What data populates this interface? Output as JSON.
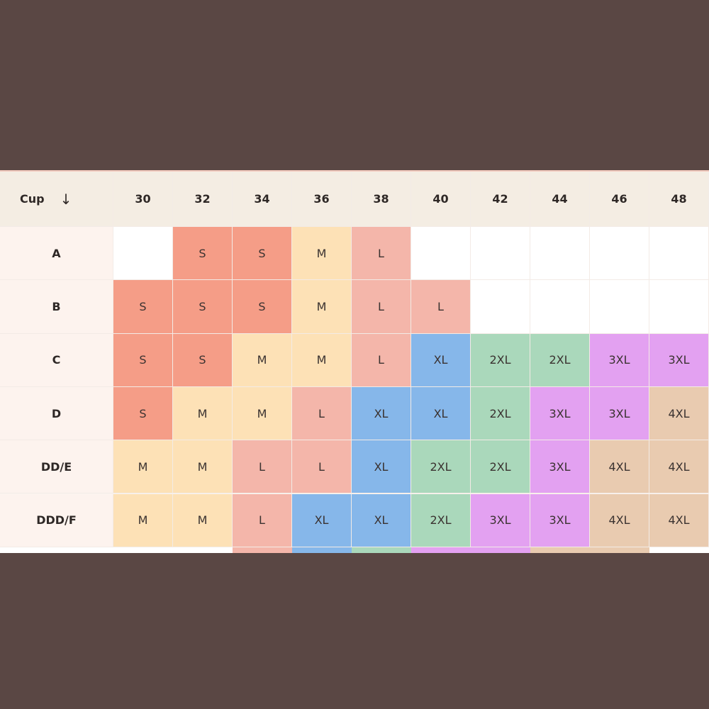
{
  "table": {
    "header": {
      "cup_label": "Cup",
      "arrow": "↓",
      "bands": [
        "30",
        "32",
        "34",
        "36",
        "38",
        "40",
        "42",
        "44",
        "46",
        "48"
      ]
    },
    "rows": [
      {
        "cup": "A",
        "cells": [
          null,
          "S",
          "S",
          "M",
          "L",
          null,
          null,
          null,
          null,
          null
        ]
      },
      {
        "cup": "B",
        "cells": [
          "S",
          "S",
          "S",
          "M",
          "L",
          "L",
          null,
          null,
          null,
          null
        ]
      },
      {
        "cup": "C",
        "cells": [
          "S",
          "S",
          "M",
          "M",
          "L",
          "XL",
          "2XL",
          "2XL",
          "3XL",
          "3XL"
        ]
      },
      {
        "cup": "D",
        "cells": [
          "S",
          "M",
          "M",
          "L",
          "XL",
          "XL",
          "2XL",
          "3XL",
          "3XL",
          "4XL"
        ]
      },
      {
        "cup": "DD/E",
        "cells": [
          "M",
          "M",
          "L",
          "L",
          "XL",
          "2XL",
          "2XL",
          "3XL",
          "4XL",
          "4XL"
        ]
      },
      {
        "cup": "DDD/F",
        "cells": [
          "M",
          "M",
          "L",
          "XL",
          "XL",
          "2XL",
          "3XL",
          "3XL",
          "4XL",
          "4XL"
        ]
      }
    ],
    "size_colors": {
      "S": "#f59d87",
      "M": "#fde1b6",
      "L": "#f4b6aa",
      "XL": "#86b7ea",
      "2XL": "#aad8bb",
      "3XL": "#e3a1f1",
      "4XL": "#e9cbb0"
    }
  }
}
